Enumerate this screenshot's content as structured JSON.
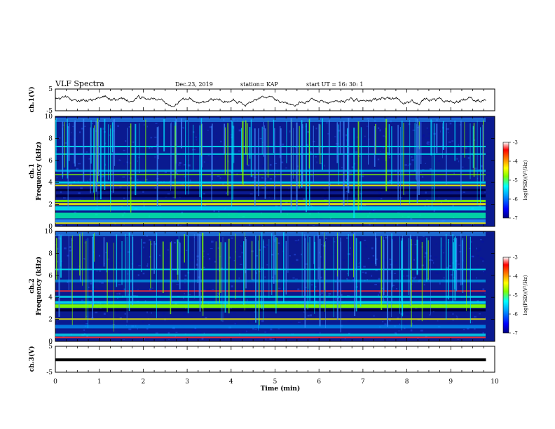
{
  "header": {
    "title": "VLF Spectra",
    "date": "Dec.23, 2019",
    "station": "station= KAP",
    "start": "start  UT =   16: 30: 1"
  },
  "colors": {
    "waveform": "#000000",
    "colorbar": [
      "#00007f",
      "#0000ff",
      "#00a0ff",
      "#00ffff",
      "#7fff00",
      "#ffff00",
      "#ff7f00",
      "#ff0000",
      "#ffffff"
    ]
  },
  "chart_data": [
    {
      "type": "line",
      "panel": "ch1-waveform",
      "ylabel": "ch.1(V)",
      "ylim": [
        -5,
        5
      ],
      "yticks": [
        "5",
        "-5"
      ],
      "xlim": [
        0,
        10
      ]
    },
    {
      "type": "heatmap",
      "panel": "ch1-spectrogram",
      "ylabel": "ch.1\nFrequency (kHz)",
      "ylabel_lines": [
        "ch.1",
        "Frequency (kHz)"
      ],
      "ylim": [
        0,
        10
      ],
      "yticks": [
        "0",
        "2",
        "4",
        "6",
        "8",
        "10"
      ],
      "xlim": [
        0,
        10
      ],
      "colorbar": {
        "label": "log(PSD)(V²/Hz)",
        "range": [
          -7,
          -3
        ],
        "ticks": [
          "-3",
          "-4",
          "-5",
          "-6",
          "-7"
        ]
      }
    },
    {
      "type": "heatmap",
      "panel": "ch2-spectrogram",
      "ylabel": "ch.2\nFrequency (kHz)",
      "ylabel_lines": [
        "ch.2",
        "Frequency (kHz)"
      ],
      "ylim": [
        0,
        10
      ],
      "yticks": [
        "0",
        "2",
        "4",
        "6",
        "8",
        "10"
      ],
      "xlim": [
        0,
        10
      ],
      "colorbar": {
        "label": "log(PSD)(V²/Hz)",
        "range": [
          -7,
          -3
        ],
        "ticks": [
          "-3",
          "-4",
          "-5",
          "-6",
          "-7"
        ]
      }
    },
    {
      "type": "line",
      "panel": "ch3-waveform",
      "ylabel": "ch.3(V)",
      "ylim": [
        -5,
        5
      ],
      "yticks": [
        "5",
        "-5"
      ],
      "y_constant": -0.2,
      "xlim": [
        0,
        10
      ],
      "xlabel": "Time (min)",
      "xticks": [
        "0",
        "1",
        "2",
        "3",
        "4",
        "5",
        "6",
        "7",
        "8",
        "9",
        "10"
      ]
    }
  ]
}
